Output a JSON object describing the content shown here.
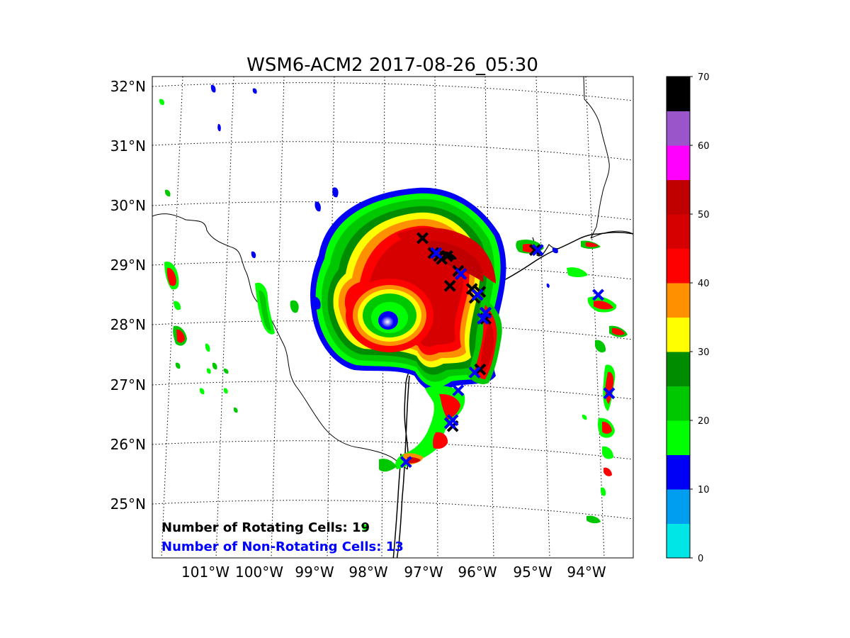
{
  "title": "WSM6-ACM2 2017-08-26_05:30",
  "lat_labels": [
    "32°N",
    "31°N",
    "30°N",
    "29°N",
    "28°N",
    "27°N",
    "26°N",
    "25°N"
  ],
  "lon_labels": [
    "101°W",
    "100°W",
    "99°W",
    "98°W",
    "97°W",
    "96°W",
    "95°W",
    "94°W"
  ],
  "colorbar": {
    "ticks": [
      "0",
      "10",
      "20",
      "30",
      "40",
      "50",
      "60",
      "70"
    ],
    "colors": [
      "#00e5e5",
      "#009ef0",
      "#0000f6",
      "#00ff00",
      "#00c800",
      "#008c00",
      "#ffff00",
      "#ff9000",
      "#ff0000",
      "#d60000",
      "#c00000",
      "#ff00ff",
      "#9955c9",
      "#000000"
    ]
  },
  "counts": {
    "rotating": "Number of Rotating Cells: 19",
    "non_rotating": "Number of Non-Rotating Cells: 13",
    "rotating_color": "#000000",
    "non_rotating_color": "#0000ff"
  },
  "markers": {
    "rotating_color": "#000000",
    "non_rotating_color": "#0000ff",
    "rotating_lonlat": [
      [
        -97.0,
        29.45
      ],
      [
        -96.8,
        29.2
      ],
      [
        -96.7,
        29.15
      ],
      [
        -96.55,
        29.15
      ],
      [
        -96.35,
        28.9
      ],
      [
        -96.3,
        28.85
      ],
      [
        -96.5,
        28.65
      ],
      [
        -96.1,
        28.6
      ],
      [
        -96.0,
        28.5
      ],
      [
        -96.05,
        28.45
      ],
      [
        -95.85,
        28.1
      ],
      [
        -95.95,
        27.25
      ],
      [
        -94.95,
        29.25
      ],
      [
        -94.9,
        29.25
      ],
      [
        -96.45,
        26.3
      ],
      [
        -96.5,
        26.35
      ],
      [
        -95.85,
        28.2
      ],
      [
        -96.65,
        29.1
      ],
      [
        -95.95,
        28.55
      ]
    ],
    "non_rotating_lonlat": [
      [
        -96.75,
        29.2
      ],
      [
        -96.3,
        28.85
      ],
      [
        -95.85,
        28.2
      ],
      [
        -96.05,
        27.2
      ],
      [
        -96.35,
        26.9
      ],
      [
        -96.45,
        26.4
      ],
      [
        -97.3,
        25.7
      ],
      [
        -93.8,
        28.5
      ],
      [
        -93.6,
        26.85
      ],
      [
        -94.9,
        29.25
      ],
      [
        -96.0,
        28.5
      ],
      [
        -95.9,
        28.1
      ],
      [
        -96.5,
        26.35
      ]
    ]
  }
}
